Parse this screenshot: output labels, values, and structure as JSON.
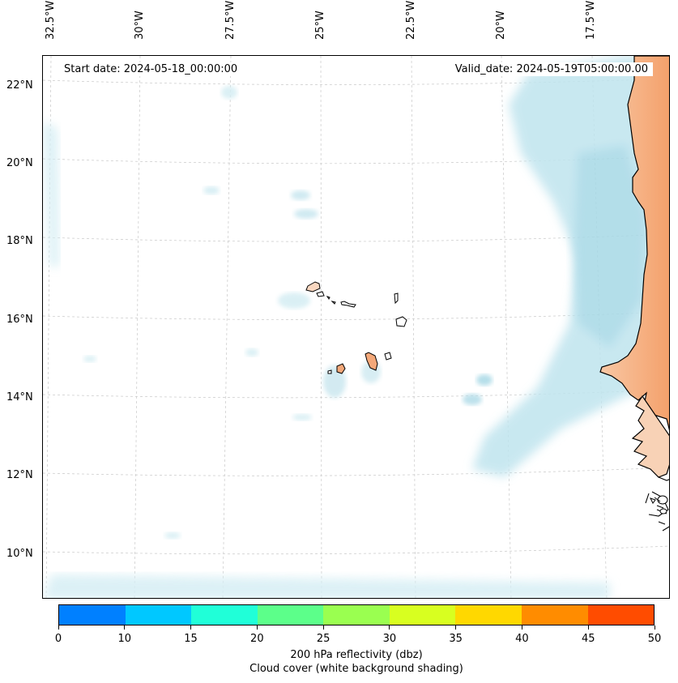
{
  "map": {
    "start_date": "Start date: 2024-05-18_00:00:00",
    "valid_date": "Valid_date: 2024-05-19T05:00:00.00",
    "lon_labels": [
      "32.5°W",
      "30°W",
      "27.5°W",
      "25°W",
      "22.5°W",
      "20°W",
      "17.5°W"
    ],
    "lat_labels": [
      "22°N",
      "20°N",
      "18°N",
      "16°N",
      "14°N",
      "12°N",
      "10°N"
    ],
    "land_color": "#f4a06a",
    "cloud_color": "#a8d8e6"
  },
  "colorbar": {
    "ticks": [
      "0",
      "10",
      "15",
      "20",
      "25",
      "30",
      "35",
      "40",
      "45",
      "50"
    ],
    "colors": [
      "#0080ff",
      "#00c8ff",
      "#20ffd8",
      "#5cff8a",
      "#9aff50",
      "#d8ff20",
      "#ffd800",
      "#ff8c00",
      "#ff4c00"
    ],
    "title_line1": "200 hPa reflectivity (dbz)",
    "title_line2": "Cloud cover (white background shading)"
  }
}
